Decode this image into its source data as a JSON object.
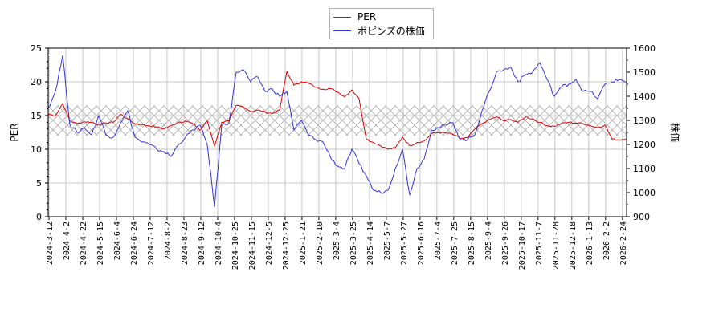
{
  "chart_data": {
    "type": "line",
    "title": "",
    "xlabel": "",
    "ylabel_left": "PER",
    "ylabel_right": "株価",
    "ylim_left": [
      0,
      25
    ],
    "ylim_right": [
      900,
      1600
    ],
    "yticks_left": [
      0,
      5,
      10,
      15,
      20,
      25
    ],
    "yticks_right": [
      900,
      1000,
      1100,
      1200,
      1300,
      1400,
      1500,
      1600
    ],
    "grid": true,
    "legend_position": "top-center",
    "shaded_band": {
      "axis": "left",
      "from": 12,
      "to": 16.5,
      "pattern": "crosshatch"
    },
    "x_tick_labels": [
      "2024-3-12",
      "2024-4-2",
      "2024-4-22",
      "2024-5-15",
      "2024-6-4",
      "2024-6-24",
      "2024-7-12",
      "2024-8-2",
      "2024-8-23",
      "2024-9-12",
      "2024-10-4",
      "2024-10-25",
      "2024-11-15",
      "2024-12-5",
      "2024-12-25",
      "2025-1-21",
      "2025-2-10",
      "2025-3-4",
      "2025-3-25",
      "2025-4-14",
      "2025-5-7",
      "2025-5-27",
      "2025-6-16",
      "2025-7-4",
      "2025-7-25",
      "2025-8-15",
      "2025-9-4",
      "2025-9-26",
      "2025-10-17",
      "2025-11-7",
      "2025-11-28",
      "2025-12-18",
      "2026-1-13",
      "2026-2-2",
      "2026-2-24"
    ],
    "series": [
      {
        "name": "PER",
        "color": "#dd0000",
        "axis": "left",
        "values": [
          15.2,
          15.0,
          16.8,
          14.2,
          13.8,
          14.1,
          14.0,
          13.6,
          13.9,
          14.0,
          15.2,
          14.5,
          13.8,
          13.6,
          13.5,
          13.3,
          13.0,
          13.5,
          14.0,
          14.2,
          13.8,
          12.8,
          14.2,
          10.5,
          14.0,
          14.2,
          16.5,
          16.3,
          15.6,
          15.8,
          15.5,
          15.3,
          15.8,
          21.5,
          19.5,
          20.0,
          19.8,
          19.2,
          18.9,
          19.0,
          18.5,
          17.8,
          18.8,
          17.5,
          11.5,
          11.0,
          10.5,
          10.0,
          10.2,
          11.8,
          10.5,
          11.0,
          11.2,
          12.3,
          12.5,
          12.4,
          12.2,
          11.6,
          11.7,
          13.0,
          13.8,
          14.4,
          14.8,
          14.2,
          14.4,
          14.0,
          14.8,
          14.5,
          14.0,
          13.5,
          13.4,
          13.8,
          14.0,
          13.9,
          13.8,
          13.5,
          13.2,
          13.6,
          11.5,
          11.4,
          11.6
        ]
      },
      {
        "name": "ポピンズの株価",
        "color": "#3333dd",
        "axis": "right",
        "values": [
          1350,
          1420,
          1570,
          1280,
          1250,
          1270,
          1240,
          1320,
          1240,
          1230,
          1290,
          1340,
          1230,
          1210,
          1200,
          1180,
          1170,
          1150,
          1200,
          1230,
          1260,
          1280,
          1200,
          940,
          1280,
          1290,
          1500,
          1510,
          1460,
          1480,
          1420,
          1430,
          1400,
          1420,
          1260,
          1300,
          1240,
          1220,
          1210,
          1150,
          1110,
          1100,
          1180,
          1120,
          1070,
          1010,
          1000,
          1010,
          1100,
          1180,
          990,
          1100,
          1140,
          1260,
          1270,
          1280,
          1290,
          1220,
          1220,
          1240,
          1340,
          1420,
          1500,
          1510,
          1520,
          1460,
          1490,
          1500,
          1540,
          1470,
          1400,
          1440,
          1450,
          1470,
          1420,
          1420,
          1390,
          1450,
          1460,
          1470,
          1460
        ]
      }
    ]
  },
  "legend": {
    "items": [
      {
        "label": "PER",
        "color": "#dd0000"
      },
      {
        "label": "ポピンズの株価",
        "color": "#3333dd"
      }
    ]
  },
  "axes": {
    "left_label": "PER",
    "right_label": "株価"
  }
}
